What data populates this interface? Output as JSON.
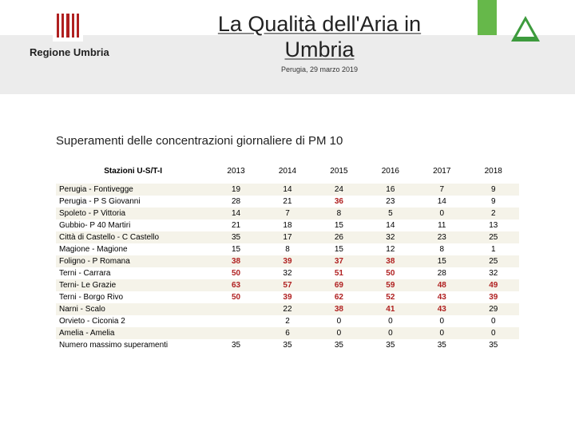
{
  "header": {
    "region_label": "Regione Umbria",
    "title_line1": "La Qualità dell'Aria in",
    "title_line2": "Umbria",
    "subtitle": "Perugia, 29 marzo 2019"
  },
  "table": {
    "title": "Superamenti delle concentrazioni giornaliere di PM 10",
    "station_header": "Stazioni U-S/T-I",
    "years": [
      "2013",
      "2014",
      "2015",
      "2016",
      "2017",
      "2018"
    ],
    "rows": [
      {
        "station": "Perugia - Fontivegge",
        "vals": [
          "19",
          "14",
          "24",
          "16",
          "7",
          "9"
        ],
        "hl": []
      },
      {
        "station": "Perugia - P S Giovanni",
        "vals": [
          "28",
          "21",
          "36",
          "23",
          "14",
          "9"
        ],
        "hl": [
          2
        ]
      },
      {
        "station": "Spoleto - P Vittoria",
        "vals": [
          "14",
          "7",
          "8",
          "5",
          "0",
          "2"
        ],
        "hl": []
      },
      {
        "station": "Gubbio- P 40 Martiri",
        "vals": [
          "21",
          "18",
          "15",
          "14",
          "11",
          "13"
        ],
        "hl": []
      },
      {
        "station": "Città di Castello - C Castello",
        "vals": [
          "35",
          "17",
          "26",
          "32",
          "23",
          "25"
        ],
        "hl": []
      },
      {
        "station": "Magione - Magione",
        "vals": [
          "15",
          "8",
          "15",
          "12",
          "8",
          "1"
        ],
        "hl": []
      },
      {
        "station": "Foligno - P Romana",
        "vals": [
          "38",
          "39",
          "37",
          "38",
          "15",
          "25"
        ],
        "hl": [
          0,
          1,
          2,
          3
        ]
      },
      {
        "station": "Terni - Carrara",
        "vals": [
          "50",
          "32",
          "51",
          "50",
          "28",
          "32"
        ],
        "hl": [
          0,
          2,
          3
        ]
      },
      {
        "station": "Terni- Le Grazie",
        "vals": [
          "63",
          "57",
          "69",
          "59",
          "48",
          "49"
        ],
        "hl": [
          0,
          1,
          2,
          3,
          4,
          5
        ]
      },
      {
        "station": "Terni  - Borgo Rivo",
        "vals": [
          "50",
          "39",
          "62",
          "52",
          "43",
          "39"
        ],
        "hl": [
          0,
          1,
          2,
          3,
          4,
          5
        ]
      },
      {
        "station": "Narni - Scalo",
        "vals": [
          "",
          "22",
          "38",
          "41",
          "43",
          "29"
        ],
        "hl": [
          2,
          3,
          4
        ]
      },
      {
        "station": "Orvieto - Ciconia 2",
        "vals": [
          "",
          "2",
          "0",
          "0",
          "0",
          "0"
        ],
        "hl": []
      },
      {
        "station": "Amelia - Amelia",
        "vals": [
          "",
          "6",
          "0",
          "0",
          "0",
          "0"
        ],
        "hl": []
      },
      {
        "station": "Numero massimo superamenti",
        "vals": [
          "35",
          "35",
          "35",
          "35",
          "35",
          "35"
        ],
        "hl": []
      }
    ]
  },
  "colors": {
    "band": "#ececec",
    "green_accent": "#66b84a",
    "triangle": "#3d9b3d",
    "logo_red": "#b02020",
    "row_alt": "#f5f3e9",
    "highlight_text": "#b02020"
  }
}
